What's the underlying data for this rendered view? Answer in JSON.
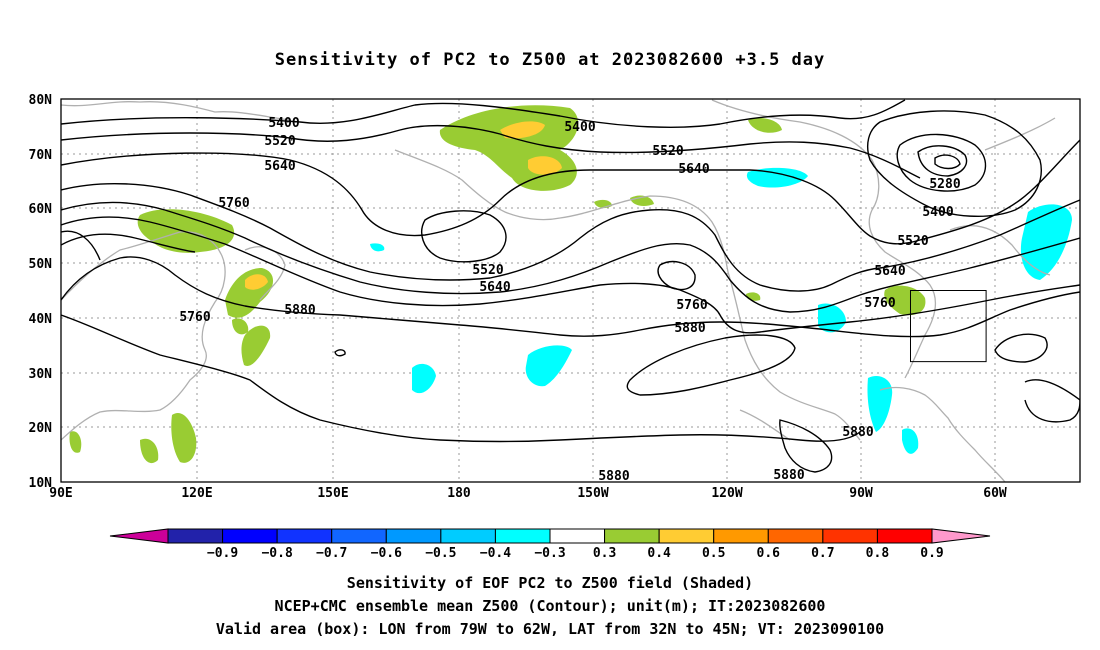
{
  "title": "Sensitivity of PC2 to Z500 at 2023082600 +3.5 day",
  "map": {
    "lat_labels": [
      "80N",
      "70N",
      "60N",
      "50N",
      "40N",
      "30N",
      "20N",
      "10N"
    ],
    "lon_labels": [
      "90E",
      "120E",
      "150E",
      "180",
      "150W",
      "120W",
      "90W",
      "60W"
    ],
    "contour_labels": [
      {
        "text": "5400"
      },
      {
        "text": "5520"
      },
      {
        "text": "5640"
      },
      {
        "text": "5760"
      },
      {
        "text": "5400"
      },
      {
        "text": "5520"
      },
      {
        "text": "5640"
      },
      {
        "text": "5280"
      },
      {
        "text": "5400"
      },
      {
        "text": "5520"
      },
      {
        "text": "5640"
      },
      {
        "text": "5760"
      },
      {
        "text": "5520"
      },
      {
        "text": "5640"
      },
      {
        "text": "5760"
      },
      {
        "text": "5880"
      },
      {
        "text": "5760"
      },
      {
        "text": "5880"
      },
      {
        "text": "5880"
      },
      {
        "text": "5880"
      },
      {
        "text": "5880"
      }
    ],
    "colors": {
      "green": "#99cc33",
      "yellow": "#ffcc33",
      "cyan": "#00ffff",
      "coast": "#b0b0b0",
      "contour": "#000000"
    },
    "valid_box": {
      "lon": [
        -79,
        -62
      ],
      "lat": [
        32,
        45
      ]
    }
  },
  "colorbar": {
    "labels": [
      "−0.9",
      "−0.8",
      "−0.7",
      "−0.6",
      "−0.5",
      "−0.4",
      "−0.3",
      "0.3",
      "0.4",
      "0.5",
      "0.6",
      "0.7",
      "0.8",
      "0.9"
    ],
    "colors": [
      "#2222aa",
      "#0000ff",
      "#1133ff",
      "#1166ff",
      "#0099ff",
      "#00ccff",
      "#00ffff",
      "#ffffff",
      "#99cc33",
      "#ffcc33",
      "#ff9900",
      "#ff6600",
      "#ff3300",
      "#ff0000"
    ],
    "low_end": "#cc0099",
    "high_end": "#ff99cc"
  },
  "captions": [
    "Sensitivity of EOF PC2 to Z500 field (Shaded)",
    "NCEP+CMC ensemble mean Z500 (Contour); unit(m); IT:2023082600",
    "Valid area (box): LON from 79W to 62W, LAT from 32N to 45N; VT: 2023090100"
  ]
}
